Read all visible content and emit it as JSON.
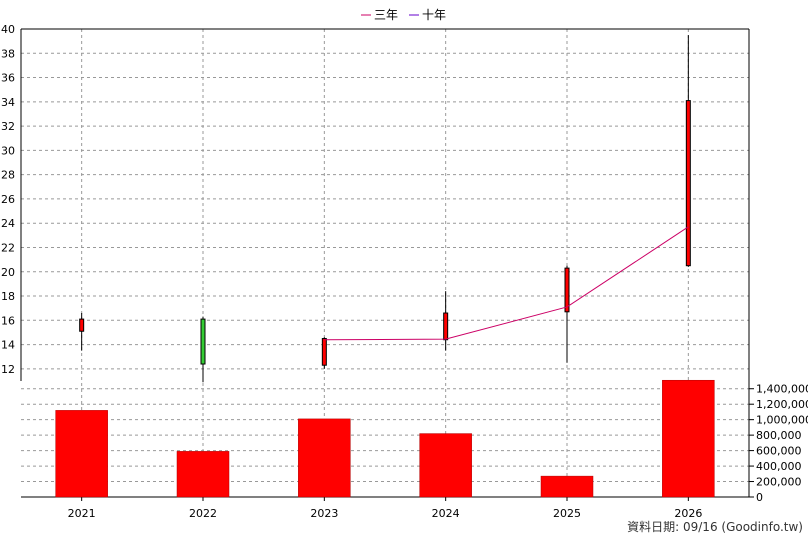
{
  "chart_data": {
    "type": "candlestick+bar",
    "legend": [
      {
        "name": "三年",
        "color": "#cc0066"
      },
      {
        "name": "十年",
        "color": "#6600cc"
      }
    ],
    "categories": [
      "2021",
      "2022",
      "2023",
      "2024",
      "2025",
      "2026"
    ],
    "price_axis": {
      "min": 11,
      "max": 40,
      "ticks": [
        12,
        14,
        16,
        18,
        20,
        22,
        24,
        26,
        28,
        30,
        32,
        34,
        36,
        38,
        40
      ]
    },
    "candles": [
      {
        "year": "2021",
        "open": 15.1,
        "close": 16.1,
        "high": 16.6,
        "low": 13.5,
        "color": "#ff0000"
      },
      {
        "year": "2022",
        "open": 16.1,
        "close": 12.4,
        "high": 16.3,
        "low": 10.9,
        "color": "#33cc33"
      },
      {
        "year": "2023",
        "open": 12.3,
        "close": 14.5,
        "high": 14.6,
        "low": 12.0,
        "color": "#ff0000"
      },
      {
        "year": "2024",
        "open": 14.4,
        "close": 16.6,
        "high": 18.4,
        "low": 13.5,
        "color": "#ff0000"
      },
      {
        "year": "2025",
        "open": 16.7,
        "close": 20.3,
        "high": 20.5,
        "low": 12.5,
        "color": "#ff0000"
      },
      {
        "year": "2026",
        "open": 20.5,
        "close": 34.1,
        "high": 39.5,
        "low": 20.4,
        "color": "#ff0000"
      }
    ],
    "series": [
      {
        "name": "三年",
        "x": [
          "2023",
          "2024",
          "2025",
          "2026"
        ],
        "values": [
          14.4,
          14.45,
          17.1,
          23.7
        ],
        "color": "#cc0066"
      }
    ],
    "volume_axis": {
      "min": 0,
      "max": 1500000,
      "ticks": [
        0,
        200000,
        400000,
        600000,
        800000,
        1000000,
        1200000,
        1400000
      ],
      "tick_labels": [
        "0",
        "200,000",
        "400,000",
        "600,000",
        "800,000",
        "1,000,000",
        "1,200,000",
        "1,400,000"
      ]
    },
    "volumes": [
      1120000,
      590000,
      1010000,
      820000,
      270000,
      1510000
    ],
    "volume_color": "#ff0000",
    "grid": true
  },
  "footer": "資料日期: 09/16  (Goodinfo.tw)"
}
